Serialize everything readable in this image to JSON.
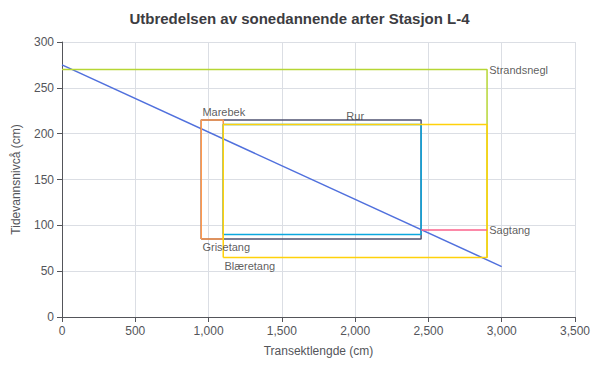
{
  "chart_data": {
    "type": "line",
    "title": "Utbredelsen av sonedannende arter Stasjon L-4",
    "x_label": "Transektlengde (cm)",
    "y_label": "Tidevannsnivcå (cm)",
    "xlim": [
      0,
      3500
    ],
    "ylim": [
      0,
      300
    ],
    "xticks": [
      0,
      500,
      1000,
      1500,
      2000,
      2500,
      3000,
      3500
    ],
    "yticks": [
      0,
      50,
      100,
      150,
      200,
      250,
      300
    ],
    "grid": true,
    "series": [
      {
        "type": "line",
        "x": [
          0,
          3000
        ],
        "y": [
          275,
          55
        ]
      },
      {
        "type": "line",
        "x": [
          0,
          2900,
          2900
        ],
        "y": [
          270,
          270,
          65
        ]
      },
      {
        "type": "rect",
        "x1": 950,
        "x2": 2450,
        "y_bot": 85,
        "y_top": 215
      },
      {
        "type": "rect",
        "x1": 950,
        "x2": 1100,
        "y_bot": 85,
        "y_top": 215
      },
      {
        "type": "rect",
        "x1": 1100,
        "x2": 2450,
        "y_bot": 90,
        "y_top": 210
      },
      {
        "type": "rect",
        "x1": 1100,
        "x2": 2900,
        "y_bot": 65,
        "y_top": 210
      },
      {
        "type": "line",
        "x": [
          2450,
          2900
        ],
        "y": [
          95,
          95
        ]
      }
    ],
    "annotations": [
      {
        "text": "Strandsnegl",
        "x": 2915,
        "y": 270
      },
      {
        "text": "Grisetang",
        "x": 958,
        "y": 82
      },
      {
        "text": "Marebek",
        "x": 958,
        "y": 218
      },
      {
        "text": "Rur",
        "x": 1940,
        "y": 213
      },
      {
        "text": "Blæretang",
        "x": 1108,
        "y": 62
      },
      {
        "text": "Sagtang",
        "x": 2915,
        "y": 95
      }
    ]
  }
}
